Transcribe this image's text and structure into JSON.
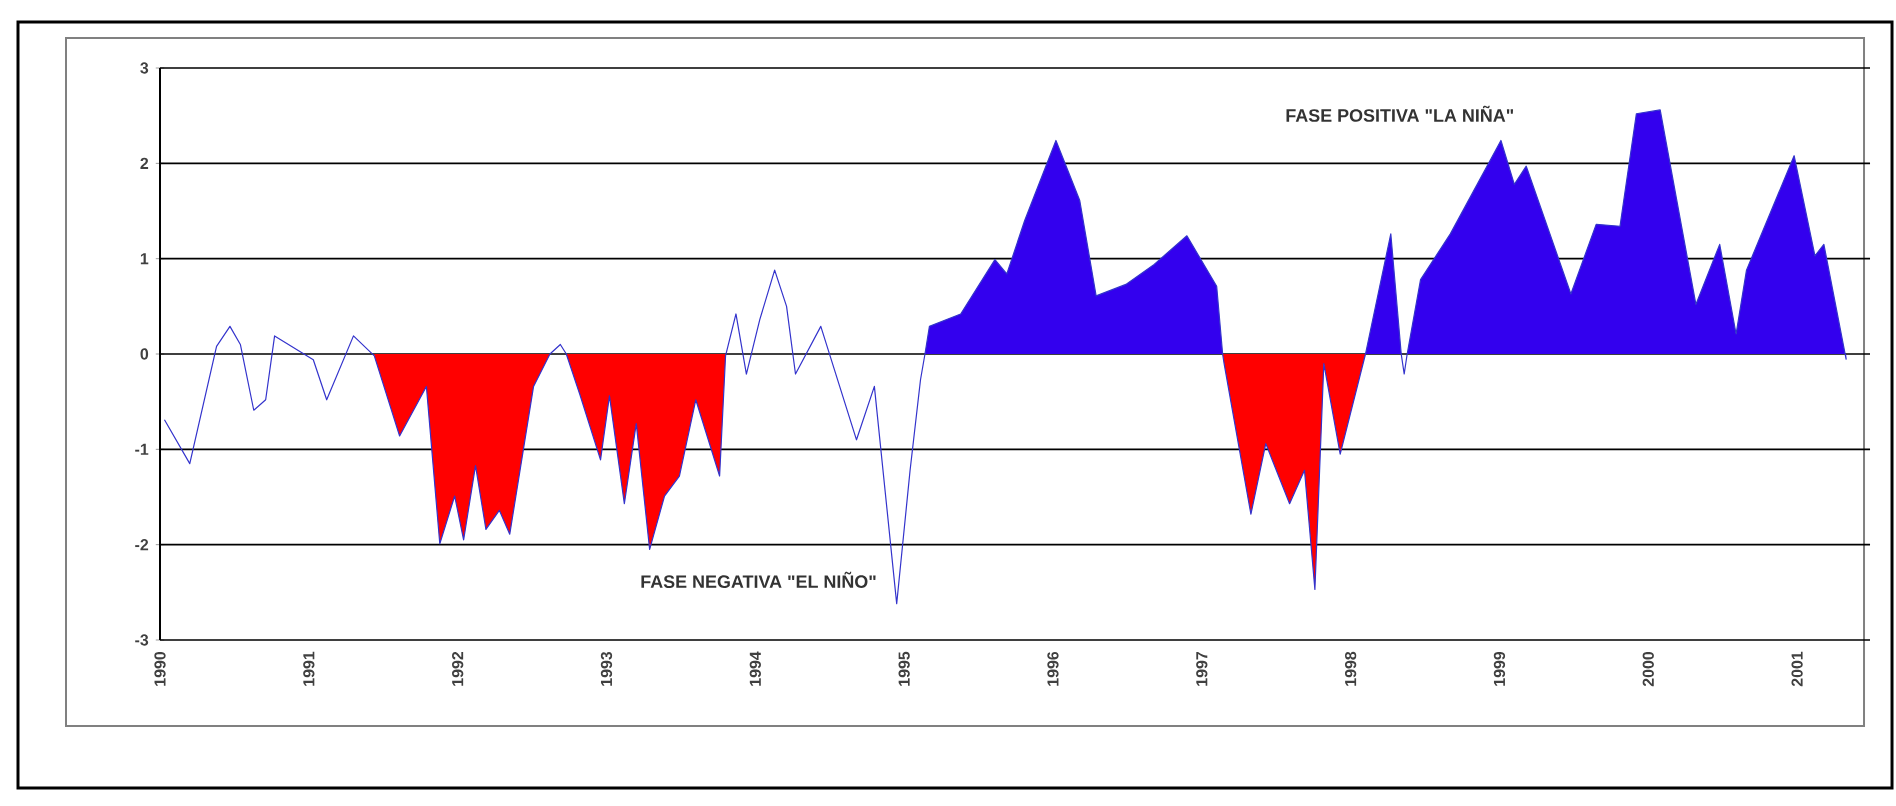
{
  "chart_data": {
    "type": "line",
    "x": [
      1990.03,
      1990.2,
      1990.38,
      1990.47,
      1990.54,
      1990.63,
      1990.71,
      1990.77,
      1991.03,
      1991.12,
      1991.3,
      1991.44,
      1991.61,
      1991.79,
      1991.88,
      1991.98,
      1992.04,
      1992.12,
      1992.19,
      1992.28,
      1992.35,
      1992.51,
      1992.62,
      1992.69,
      1992.73,
      1992.82,
      1992.96,
      1993.02,
      1993.12,
      1993.2,
      1993.29,
      1993.39,
      1993.49,
      1993.6,
      1993.76,
      1993.8,
      1993.87,
      1993.94,
      1994.03,
      1994.13,
      1994.21,
      1994.27,
      1994.44,
      1994.68,
      1994.8,
      1994.95,
      1995.04,
      1995.11,
      1995.14,
      1995.17,
      1995.38,
      1995.61,
      1995.69,
      1995.81,
      1996.02,
      1996.18,
      1996.29,
      1996.49,
      1996.68,
      1996.9,
      1997.1,
      1997.14,
      1997.15,
      1997.33,
      1997.43,
      1997.59,
      1997.69,
      1997.76,
      1997.82,
      1997.93,
      1998.1,
      1998.27,
      1998.34,
      1998.36,
      1998.38,
      1998.47,
      1998.67,
      1999.01,
      1999.1,
      1999.18,
      1999.48,
      1999.65,
      1999.81,
      1999.92,
      2000.08,
      2000.32,
      2000.48,
      2000.59,
      2000.66,
      2000.98,
      2001.12,
      2001.18,
      2001.33
    ],
    "series": [
      {
        "type": "area",
        "color": "#ff0000",
        "values": [
          null,
          null,
          null,
          null,
          null,
          null,
          null,
          null,
          null,
          null,
          null,
          -0.02,
          -0.86,
          -0.34,
          -1.99,
          -1.49,
          -1.95,
          -1.17,
          -1.84,
          -1.64,
          -1.89,
          -0.34,
          0,
          null,
          0,
          -0.42,
          -1.11,
          -0.44,
          -1.57,
          -0.73,
          -2.05,
          -1.49,
          -1.28,
          -0.48,
          -1.28,
          -0.02,
          null,
          null,
          null,
          null,
          null,
          null,
          null,
          null,
          null,
          null,
          null,
          null,
          null,
          null,
          null,
          null,
          null,
          null,
          null,
          null,
          null,
          null,
          null,
          null,
          null,
          0,
          -0.1,
          -1.68,
          -0.94,
          -1.57,
          -1.22,
          -2.47,
          -0.1,
          -1.05,
          0,
          null,
          null,
          null,
          null,
          null,
          null,
          null,
          null,
          null,
          null,
          null,
          null,
          null,
          null,
          null,
          null,
          null,
          null,
          null,
          null,
          null,
          null
        ]
      },
      {
        "type": "area",
        "color": "#3300ee",
        "values": [
          null,
          null,
          null,
          null,
          null,
          null,
          null,
          null,
          null,
          null,
          null,
          null,
          null,
          null,
          null,
          null,
          null,
          null,
          null,
          null,
          null,
          null,
          null,
          null,
          null,
          null,
          null,
          null,
          null,
          null,
          null,
          null,
          null,
          null,
          null,
          null,
          null,
          null,
          null,
          null,
          null,
          null,
          null,
          null,
          null,
          null,
          null,
          null,
          0,
          0.29,
          0.42,
          0.99,
          0.84,
          1.4,
          2.24,
          1.61,
          0.61,
          0.73,
          0.94,
          1.24,
          0.71,
          0,
          null,
          null,
          null,
          null,
          null,
          null,
          null,
          null,
          0,
          1.26,
          0,
          null,
          0,
          0.78,
          1.26,
          2.24,
          1.78,
          1.97,
          0.63,
          1.36,
          1.34,
          2.52,
          2.56,
          0.52,
          1.15,
          0.21,
          0.88,
          2.08,
          1.03,
          1.15,
          -0.06
        ]
      },
      {
        "color": "#3333cc",
        "values": [
          -0.69,
          -1.15,
          0.08,
          0.29,
          0.1,
          -0.59,
          -0.48,
          0.19,
          -0.06,
          -0.48,
          0.19,
          -0.02,
          -0.86,
          -0.34,
          -1.99,
          -1.49,
          -1.95,
          -1.17,
          -1.84,
          -1.64,
          -1.89,
          -0.34,
          0,
          0.1,
          0,
          -0.42,
          -1.11,
          -0.44,
          -1.57,
          -0.73,
          -2.05,
          -1.49,
          -1.28,
          -0.48,
          -1.28,
          -0.02,
          0.42,
          -0.21,
          0.36,
          0.88,
          0.5,
          -0.21,
          0.29,
          -0.9,
          -0.34,
          -2.62,
          -1.22,
          -0.27,
          0,
          0.29,
          0.42,
          0.99,
          0.84,
          1.4,
          2.24,
          1.61,
          0.61,
          0.73,
          0.94,
          1.24,
          0.71,
          0,
          -0.1,
          -1.68,
          -0.94,
          -1.57,
          -1.22,
          -2.47,
          -0.1,
          -1.05,
          0,
          1.26,
          0,
          -0.21,
          0,
          0.78,
          1.26,
          2.24,
          1.78,
          1.97,
          0.63,
          1.36,
          1.34,
          2.52,
          2.56,
          0.52,
          1.15,
          0.21,
          0.88,
          2.08,
          1.03,
          1.15,
          -0.06
        ]
      }
    ],
    "xlim": [
      1990,
      2001.49
    ],
    "xticks": [
      1990,
      1991,
      1992,
      1993,
      1994,
      1995,
      1996,
      1997,
      1998,
      1999,
      2000,
      2001
    ],
    "ylim": [
      -3,
      3
    ],
    "yticks": [
      -3,
      -2,
      -1,
      0,
      1,
      2,
      3
    ],
    "grid": "y",
    "annotations": [
      "FASE NEGATIVA \"EL NIÑO\"",
      "FASE POSITIVA \"LA NIÑA\""
    ]
  }
}
